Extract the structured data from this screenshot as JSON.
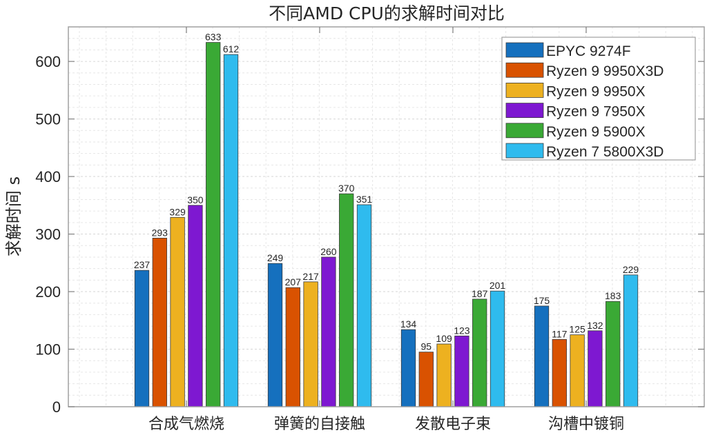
{
  "chart_data": {
    "type": "bar",
    "title": "不同AMD CPU的求解时间对比",
    "xlabel": "",
    "ylabel": "求解时间 s",
    "ylim": [
      0,
      660
    ],
    "yticks": [
      0,
      100,
      200,
      300,
      400,
      500,
      600
    ],
    "grid": true,
    "legend_position": "top-right",
    "categories": [
      "合成气燃烧",
      "弹簧的自接触",
      "发散电子束",
      "沟槽中镀铜"
    ],
    "series": [
      {
        "name": "EPYC 9274F",
        "color": "#1570be",
        "values": [
          237,
          249,
          134,
          175
        ]
      },
      {
        "name": "Ryzen 9 9950X3D",
        "color": "#d95201",
        "values": [
          293,
          207,
          95,
          117
        ]
      },
      {
        "name": "Ryzen 9 9950X",
        "color": "#edb120",
        "values": [
          329,
          217,
          109,
          125
        ]
      },
      {
        "name": "Ryzen 9 7950X",
        "color": "#7e18d1",
        "values": [
          350,
          260,
          123,
          132
        ]
      },
      {
        "name": "Ryzen 9 5900X",
        "color": "#3aa935",
        "values": [
          633,
          370,
          187,
          183
        ]
      },
      {
        "name": "Ryzen 7 5800X3D",
        "color": "#2fbbee",
        "values": [
          612,
          351,
          201,
          229
        ]
      }
    ]
  }
}
